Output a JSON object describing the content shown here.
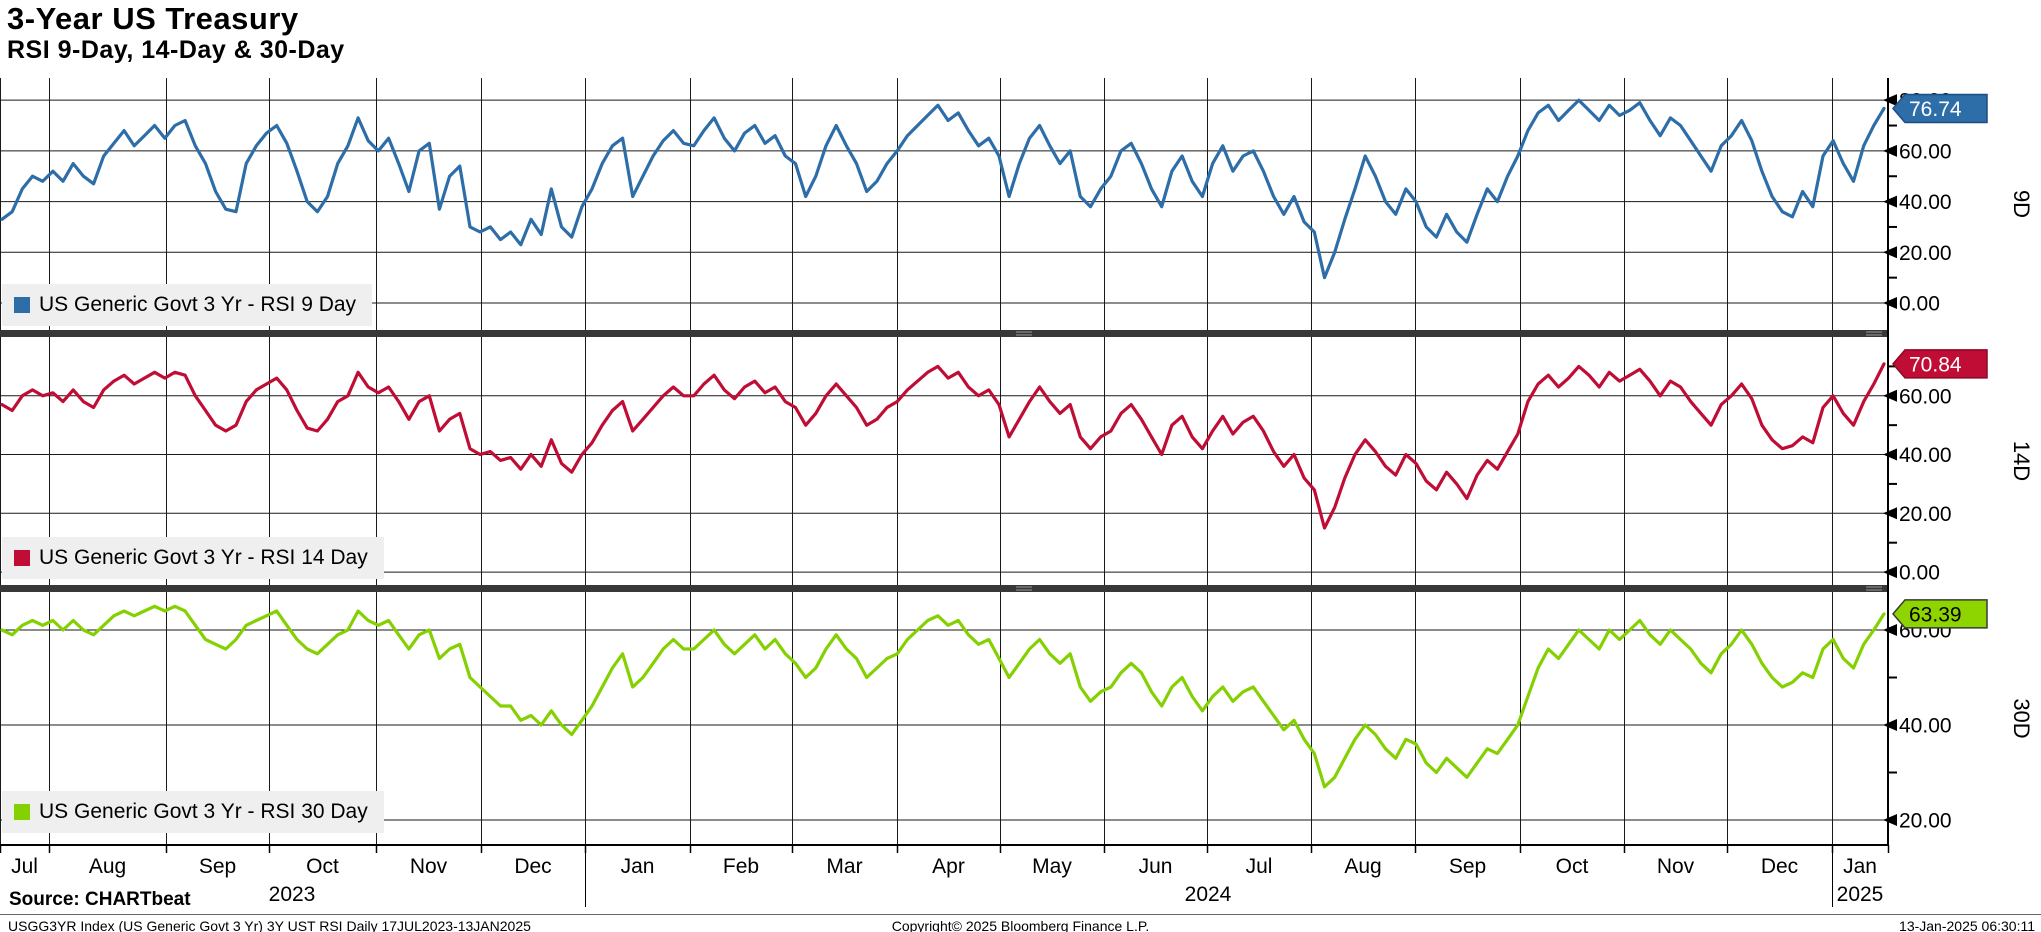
{
  "header": {
    "title": "3-Year US Treasury",
    "subtitle": "RSI 9-Day, 14-Day & 30-Day"
  },
  "footer": {
    "source": "Source: CHARTbeat",
    "description": "USGG3YR Index (US Generic Govt 3 Yr) 3Y UST RSI  Daily 17JUL2023-13JAN2025",
    "copyright": "Copyright© 2025 Bloomberg Finance L.P.",
    "timestamp": "13-Jan-2025 06:30:11"
  },
  "chart_data": {
    "type": "line",
    "grid": true,
    "legend_position": "inside-bottom-left-per-panel",
    "x_axis": {
      "months": [
        "Jul",
        "Aug",
        "Sep",
        "Oct",
        "Nov",
        "Dec",
        "Jan",
        "Feb",
        "Mar",
        "Apr",
        "May",
        "Jun",
        "Jul",
        "Aug",
        "Sep",
        "Oct",
        "Nov",
        "Dec",
        "Jan"
      ],
      "years": [
        "2023",
        "2024",
        "2025"
      ],
      "date_range": "17JUL2023-13JAN2025"
    },
    "panels": [
      {
        "axis_label": "9D",
        "legend": "US Generic Govt 3 Yr - RSI 9 Day",
        "color": "#2d6da8",
        "box_fill": "#2d6da8",
        "box_border": "#1c4f84",
        "box_text_color": "#ffffff",
        "last_value": 76.74,
        "last_value_label": "76.74",
        "ylim": [
          -10.65,
          88.75
        ],
        "y_ticks": [
          {
            "v": 0,
            "label": "0.00"
          },
          {
            "v": 20,
            "label": "20.00"
          },
          {
            "v": 40,
            "label": "40.00"
          },
          {
            "v": 60,
            "label": "60.00"
          },
          {
            "v": 80,
            "label": "80.00"
          }
        ],
        "values": [
          33,
          36,
          45,
          50,
          48,
          52,
          48,
          55,
          50,
          47,
          58,
          63,
          68,
          62,
          66,
          70,
          65,
          70,
          72,
          62,
          55,
          44,
          37,
          36,
          55,
          62,
          67,
          70,
          63,
          52,
          40,
          36,
          42,
          55,
          62,
          73,
          64,
          60,
          65,
          55,
          44,
          60,
          63,
          37,
          50,
          54,
          30,
          28,
          30,
          25,
          28,
          23,
          33,
          27,
          45,
          30,
          26,
          38,
          45,
          55,
          62,
          65,
          42,
          50,
          58,
          64,
          68,
          63,
          62,
          68,
          73,
          65,
          60,
          67,
          70,
          63,
          66,
          58,
          55,
          42,
          50,
          62,
          70,
          62,
          55,
          44,
          48,
          55,
          60,
          66,
          70,
          74,
          78,
          72,
          75,
          68,
          62,
          65,
          58,
          42,
          55,
          65,
          70,
          62,
          55,
          60,
          42,
          38,
          45,
          50,
          60,
          63,
          55,
          45,
          38,
          52,
          58,
          48,
          42,
          55,
          62,
          52,
          58,
          60,
          52,
          42,
          35,
          42,
          32,
          28,
          10,
          20,
          33,
          45,
          58,
          50,
          40,
          35,
          45,
          40,
          30,
          26,
          35,
          28,
          24,
          35,
          45,
          40,
          50,
          58,
          68,
          75,
          78,
          72,
          76,
          80,
          76,
          72,
          78,
          74,
          76,
          79,
          72,
          66,
          73,
          70,
          64,
          58,
          52,
          62,
          66,
          72,
          64,
          52,
          42,
          36,
          34,
          44,
          38,
          58,
          64,
          55,
          48,
          62,
          70,
          76.74
        ]
      },
      {
        "axis_label": "14D",
        "legend": "US Generic Govt 3 Yr - RSI 14 Day",
        "color": "#bf0d35",
        "box_fill": "#bf0d35",
        "box_border": "#8c0a27",
        "box_text_color": "#ffffff",
        "last_value": 70.84,
        "last_value_label": "70.84",
        "ylim": [
          -4.4,
          80.0
        ],
        "y_ticks": [
          {
            "v": 0,
            "label": "0.00"
          },
          {
            "v": 20,
            "label": "20.00"
          },
          {
            "v": 40,
            "label": "40.00"
          },
          {
            "v": 60,
            "label": "60.00"
          }
        ],
        "values": [
          57,
          55,
          60,
          62,
          60,
          61,
          58,
          62,
          58,
          56,
          62,
          65,
          67,
          64,
          66,
          68,
          66,
          68,
          67,
          60,
          55,
          50,
          48,
          50,
          58,
          62,
          64,
          66,
          62,
          55,
          49,
          48,
          52,
          58,
          60,
          68,
          63,
          61,
          63,
          58,
          52,
          58,
          60,
          48,
          52,
          54,
          42,
          40,
          41,
          38,
          39,
          35,
          40,
          36,
          45,
          37,
          34,
          40,
          44,
          50,
          55,
          58,
          48,
          52,
          56,
          60,
          63,
          60,
          60,
          64,
          67,
          62,
          59,
          63,
          65,
          61,
          63,
          58,
          56,
          50,
          54,
          60,
          64,
          60,
          56,
          50,
          52,
          56,
          58,
          62,
          65,
          68,
          70,
          66,
          68,
          63,
          60,
          62,
          57,
          46,
          52,
          58,
          63,
          58,
          54,
          57,
          46,
          42,
          46,
          48,
          54,
          57,
          52,
          46,
          40,
          50,
          53,
          46,
          42,
          48,
          53,
          47,
          51,
          53,
          48,
          41,
          36,
          40,
          32,
          28,
          15,
          22,
          32,
          40,
          45,
          41,
          36,
          33,
          40,
          37,
          31,
          28,
          34,
          30,
          25,
          33,
          38,
          35,
          41,
          47,
          58,
          64,
          67,
          63,
          66,
          70,
          67,
          63,
          68,
          65,
          67,
          69,
          65,
          60,
          65,
          63,
          58,
          54,
          50,
          57,
          60,
          64,
          59,
          50,
          45,
          42,
          43,
          46,
          44,
          56,
          60,
          54,
          50,
          58,
          64,
          70.84
        ]
      },
      {
        "axis_label": "30D",
        "legend": "US Generic Govt 3 Yr - RSI 30 Day",
        "color": "#84d000",
        "box_fill": "#8ed500",
        "box_border": "#3a3a3a",
        "box_text_color": "#000000",
        "last_value": 63.39,
        "last_value_label": "63.39",
        "ylim": [
          14.74,
          68.0
        ],
        "y_ticks": [
          {
            "v": 20,
            "label": "20.00"
          },
          {
            "v": 40,
            "label": "40.00"
          },
          {
            "v": 60,
            "label": "60.00"
          }
        ],
        "values": [
          60,
          59,
          61,
          62,
          61,
          62,
          60,
          62,
          60,
          59,
          61,
          63,
          64,
          63,
          64,
          65,
          64,
          65,
          64,
          61,
          58,
          57,
          56,
          58,
          61,
          62,
          63,
          64,
          61,
          58,
          56,
          55,
          57,
          59,
          60,
          64,
          62,
          61,
          62,
          59,
          56,
          59,
          60,
          54,
          56,
          57,
          50,
          48,
          46,
          44,
          44,
          41,
          42,
          40,
          43,
          40,
          38,
          41,
          44,
          48,
          52,
          55,
          48,
          50,
          53,
          56,
          58,
          56,
          56,
          58,
          60,
          57,
          55,
          57,
          59,
          56,
          58,
          55,
          53,
          50,
          52,
          56,
          59,
          56,
          54,
          50,
          52,
          54,
          55,
          58,
          60,
          62,
          63,
          61,
          62,
          59,
          57,
          58,
          54,
          50,
          53,
          56,
          58,
          55,
          53,
          55,
          48,
          45,
          47,
          48,
          51,
          53,
          51,
          47,
          44,
          48,
          50,
          46,
          43,
          46,
          48,
          45,
          47,
          48,
          45,
          42,
          39,
          41,
          37,
          34,
          27,
          29,
          33,
          37,
          40,
          38,
          35,
          33,
          37,
          36,
          32,
          30,
          33,
          31,
          29,
          32,
          35,
          34,
          37,
          40,
          46,
          52,
          56,
          54,
          57,
          60,
          58,
          56,
          60,
          58,
          60,
          62,
          59,
          57,
          60,
          58,
          56,
          53,
          51,
          55,
          57,
          60,
          57,
          53,
          50,
          48,
          49,
          51,
          50,
          56,
          58,
          54,
          52,
          57,
          60,
          63.39
        ]
      }
    ]
  }
}
